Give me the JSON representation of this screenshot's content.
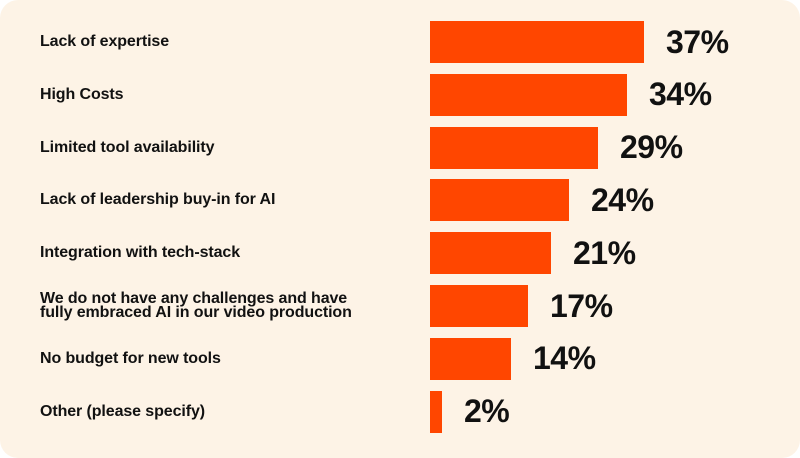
{
  "chart_data": {
    "type": "bar",
    "orientation": "horizontal",
    "title": "",
    "xlabel": "",
    "ylabel": "",
    "xlim": [
      0,
      37
    ],
    "categories": [
      "Lack of expertise",
      "High Costs",
      "Limited tool availability",
      "Lack of leadership buy-in for AI",
      "Integration with tech-stack",
      "We do not have any challenges and have fully embraced AI in our video production",
      "No budget for new tools",
      "Other (please specify)"
    ],
    "values": [
      37,
      34,
      29,
      24,
      21,
      17,
      14,
      2
    ],
    "value_labels": [
      "37%",
      "34%",
      "29%",
      "24%",
      "21%",
      "17%",
      "14%",
      "2%"
    ],
    "colors": {
      "bar": "#ff4600",
      "background": "#fdf3e6",
      "text": "#111111"
    }
  }
}
